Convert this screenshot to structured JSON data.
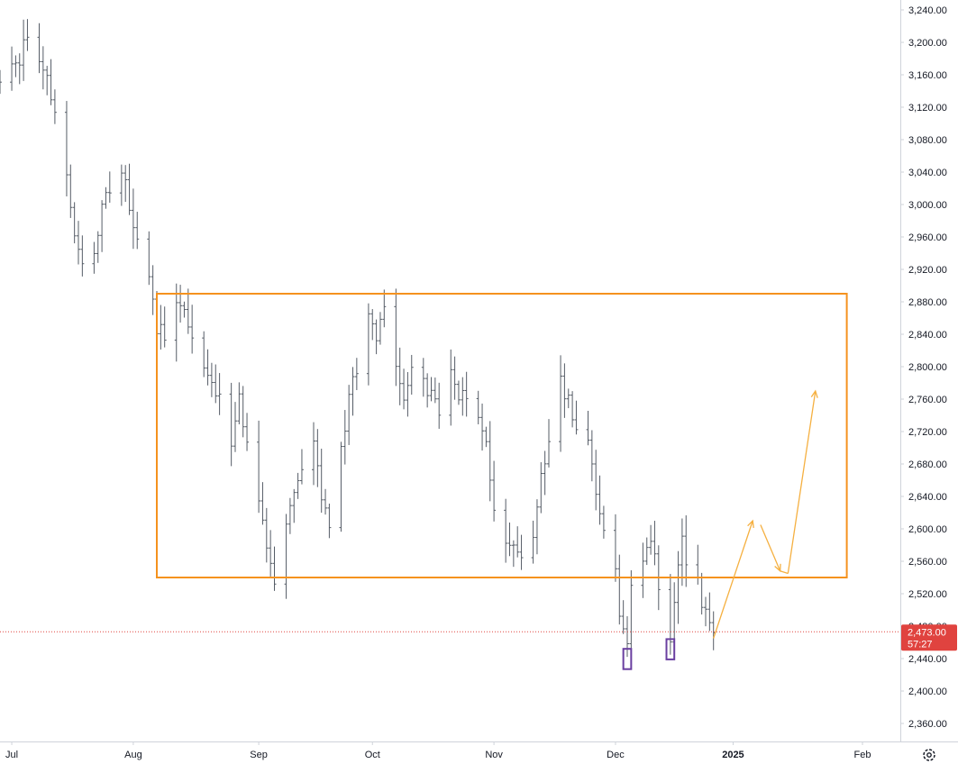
{
  "chart_data": {
    "type": "ohlc",
    "title": "",
    "xlabel": "",
    "ylabel": "",
    "ylim": [
      2335,
      3255
    ],
    "x_range": [
      "2024-06-28",
      "2025-02-11"
    ],
    "grid": false,
    "legend": "none",
    "y_ticks": [
      "2,360.00",
      "2,400.00",
      "2,440.00",
      "2,480.00",
      "2,520.00",
      "2,560.00",
      "2,600.00",
      "2,640.00",
      "2,680.00",
      "2,720.00",
      "2,760.00",
      "2,800.00",
      "2,840.00",
      "2,880.00",
      "2,920.00",
      "2,960.00",
      "3,000.00",
      "3,040.00",
      "3,080.00",
      "3,120.00",
      "3,160.00",
      "3,200.00",
      "3,240.00"
    ],
    "x_ticks": [
      {
        "label": "Jul",
        "date": "2024-07-01"
      },
      {
        "label": "Aug",
        "date": "2024-08-01"
      },
      {
        "label": "Sep",
        "date": "2024-09-02"
      },
      {
        "label": "Oct",
        "date": "2024-10-01"
      },
      {
        "label": "Nov",
        "date": "2024-11-01"
      },
      {
        "label": "Dec",
        "date": "2024-12-02"
      },
      {
        "label": "2025",
        "date": "2025-01-01"
      },
      {
        "label": "Feb",
        "date": "2025-02-03"
      }
    ],
    "price_path": [
      [
        "2024-06-28",
        3150
      ],
      [
        "2024-07-01",
        3165
      ],
      [
        "2024-07-03",
        3180
      ],
      [
        "2024-07-05",
        3215
      ],
      [
        "2024-07-08",
        3175
      ],
      [
        "2024-07-10",
        3150
      ],
      [
        "2024-07-12",
        3120
      ],
      [
        "2024-07-15",
        3040
      ],
      [
        "2024-07-17",
        2960
      ],
      [
        "2024-07-19",
        2920
      ],
      [
        "2024-07-22",
        2940
      ],
      [
        "2024-07-24",
        2990
      ],
      [
        "2024-07-26",
        3020
      ],
      [
        "2024-07-29",
        3040
      ],
      [
        "2024-07-31",
        3000
      ],
      [
        "2024-08-02",
        2950
      ],
      [
        "2024-08-05",
        2920
      ],
      [
        "2024-08-07",
        2850
      ],
      [
        "2024-08-09",
        2840
      ],
      [
        "2024-08-12",
        2870
      ],
      [
        "2024-08-14",
        2880
      ],
      [
        "2024-08-16",
        2830
      ],
      [
        "2024-08-19",
        2800
      ],
      [
        "2024-08-21",
        2780
      ],
      [
        "2024-08-23",
        2760
      ],
      [
        "2024-08-26",
        2700
      ],
      [
        "2024-08-28",
        2760
      ],
      [
        "2024-08-30",
        2700
      ],
      [
        "2024-09-02",
        2640
      ],
      [
        "2024-09-04",
        2580
      ],
      [
        "2024-09-06",
        2540
      ],
      [
        "2024-09-09",
        2600
      ],
      [
        "2024-09-11",
        2650
      ],
      [
        "2024-09-13",
        2680
      ],
      [
        "2024-09-16",
        2700
      ],
      [
        "2024-09-18",
        2640
      ],
      [
        "2024-09-20",
        2600
      ],
      [
        "2024-09-23",
        2700
      ],
      [
        "2024-09-25",
        2760
      ],
      [
        "2024-09-27",
        2800
      ],
      [
        "2024-09-30",
        2860
      ],
      [
        "2024-10-02",
        2840
      ],
      [
        "2024-10-04",
        2870
      ],
      [
        "2024-10-07",
        2810
      ],
      [
        "2024-10-09",
        2760
      ],
      [
        "2024-10-11",
        2790
      ],
      [
        "2024-10-14",
        2780
      ],
      [
        "2024-10-16",
        2760
      ],
      [
        "2024-10-18",
        2750
      ],
      [
        "2024-10-21",
        2800
      ],
      [
        "2024-10-23",
        2760
      ],
      [
        "2024-10-25",
        2770
      ],
      [
        "2024-10-28",
        2740
      ],
      [
        "2024-10-30",
        2700
      ],
      [
        "2024-11-01",
        2620
      ],
      [
        "2024-11-04",
        2590
      ],
      [
        "2024-11-06",
        2570
      ],
      [
        "2024-11-08",
        2560
      ],
      [
        "2024-11-11",
        2600
      ],
      [
        "2024-11-13",
        2660
      ],
      [
        "2024-11-15",
        2700
      ],
      [
        "2024-11-18",
        2780
      ],
      [
        "2024-11-20",
        2760
      ],
      [
        "2024-11-22",
        2720
      ],
      [
        "2024-11-25",
        2700
      ],
      [
        "2024-11-27",
        2650
      ],
      [
        "2024-11-29",
        2590
      ],
      [
        "2024-12-02",
        2550
      ],
      [
        "2024-12-03",
        2500
      ],
      [
        "2024-12-05",
        2460
      ],
      [
        "2024-12-06",
        2530
      ],
      [
        "2024-12-09",
        2560
      ],
      [
        "2024-12-11",
        2590
      ],
      [
        "2024-12-12",
        2560
      ],
      [
        "2024-12-13",
        2530
      ],
      [
        "2024-12-16",
        2470
      ],
      [
        "2024-12-17",
        2520
      ],
      [
        "2024-12-18",
        2560
      ],
      [
        "2024-12-19",
        2580
      ],
      [
        "2024-12-20",
        2550
      ],
      [
        "2024-12-23",
        2530
      ],
      [
        "2024-12-24",
        2510
      ],
      [
        "2024-12-26",
        2480
      ],
      [
        "2024-12-27",
        2473
      ]
    ],
    "last_price": {
      "value": 2473,
      "label": "2,473.00",
      "timer": "57:27"
    },
    "annotations": {
      "range_box": {
        "x1": "2024-08-07",
        "x2": "2025-01-30",
        "y_low": 2540,
        "y_high": 2890
      },
      "bottom_markers": [
        {
          "x1": "2024-12-04",
          "x2": "2024-12-06",
          "y_low": 2427,
          "y_high": 2452
        },
        {
          "x1": "2024-12-15",
          "x2": "2024-12-17",
          "y_low": 2439,
          "y_high": 2464
        }
      ],
      "projection_path": [
        [
          "2024-12-27",
          2465
        ],
        [
          "2025-01-06",
          2610
        ],
        [
          "2025-01-08",
          2605
        ],
        [
          "2025-01-13",
          2548
        ],
        [
          "2025-01-15",
          2545
        ],
        [
          "2025-01-22",
          2770
        ]
      ]
    },
    "colors": {
      "bar": "#555c66",
      "range_box": "#f5921e",
      "projection": "#f5b041",
      "marker": "#6a3fa0",
      "last_price_bg": "#e0433f",
      "axis_text": "#131722",
      "axis_line": "#cfd3da"
    },
    "icons": {
      "settings": "settings-icon"
    }
  }
}
